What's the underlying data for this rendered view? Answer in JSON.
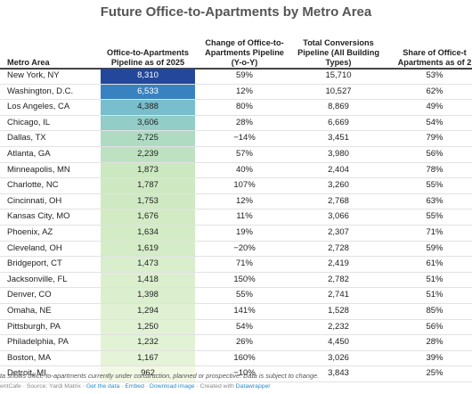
{
  "title": "Future Office-to-Apartments by Metro Area",
  "columns": [
    "Metro Area",
    [
      "Office-to-Apartments",
      "Pipeline as of 2025"
    ],
    [
      "Change of Office-to-",
      "Apartments Pipeline",
      "(Y-o-Y)"
    ],
    [
      "Total Conversions",
      "Pipeline (All Building",
      "Types)"
    ],
    [
      "Share of Office-t",
      "Apartments as of 2"
    ]
  ],
  "chart_data": {
    "type": "table",
    "columns": [
      "Metro Area",
      "Office-to-Apartments Pipeline as of 2025",
      "Change of Office-to-Apartments Pipeline (Y-o-Y)",
      "Total Conversions Pipeline (All Building Types)",
      "Share of Office-t Apartments as of 2"
    ],
    "rows": [
      [
        "New York, NY",
        "8,310",
        "59%",
        "15,710",
        "53%"
      ],
      [
        "Washington, D.C.",
        "6,533",
        "12%",
        "10,527",
        "62%"
      ],
      [
        "Los Angeles, CA",
        "4,388",
        "80%",
        "8,869",
        "49%"
      ],
      [
        "Chicago, IL",
        "3,606",
        "28%",
        "6,669",
        "54%"
      ],
      [
        "Dallas, TX",
        "2,725",
        "−14%",
        "3,451",
        "79%"
      ],
      [
        "Atlanta, GA",
        "2,239",
        "57%",
        "3,980",
        "56%"
      ],
      [
        "Minneapolis, MN",
        "1,873",
        "40%",
        "2,404",
        "78%"
      ],
      [
        "Charlotte, NC",
        "1,787",
        "107%",
        "3,260",
        "55%"
      ],
      [
        "Cincinnati, OH",
        "1,753",
        "12%",
        "2,768",
        "63%"
      ],
      [
        "Kansas City, MO",
        "1,676",
        "11%",
        "3,066",
        "55%"
      ],
      [
        "Phoenix, AZ",
        "1,634",
        "19%",
        "2,307",
        "71%"
      ],
      [
        "Cleveland, OH",
        "1,619",
        "−20%",
        "2,728",
        "59%"
      ],
      [
        "Bridgeport, CT",
        "1,473",
        "71%",
        "2,419",
        "61%"
      ],
      [
        "Jacksonville, FL",
        "1,418",
        "150%",
        "2,782",
        "51%"
      ],
      [
        "Denver, CO",
        "1,398",
        "55%",
        "2,741",
        "51%"
      ],
      [
        "Omaha, NE",
        "1,294",
        "141%",
        "1,528",
        "85%"
      ],
      [
        "Pittsburgh, PA",
        "1,250",
        "54%",
        "2,232",
        "56%"
      ],
      [
        "Philadelphia, PA",
        "1,232",
        "26%",
        "4,450",
        "28%"
      ],
      [
        "Boston, MA",
        "1,167",
        "160%",
        "3,026",
        "39%"
      ],
      [
        "Detroit, MI",
        "962",
        "−10%",
        "3,843",
        "25%"
      ]
    ],
    "pipeline_values": [
      8310,
      6533,
      4388,
      3606,
      2725,
      2239,
      1873,
      1787,
      1753,
      1676,
      1634,
      1619,
      1473,
      1418,
      1398,
      1294,
      1250,
      1232,
      1167,
      962
    ],
    "color_scale": {
      "min": 962,
      "max": 8310,
      "stops": [
        "#f1f8e4",
        "#cde9c0",
        "#a3d6c4",
        "#6fb9cf",
        "#3a86c3",
        "#23479b"
      ]
    }
  },
  "notes": "ta shows office-to-apartments currently under construction, planned or prospective. Data is subject to change.",
  "credits": [
    {
      "text": "entCafe · Source: Yardi Matrix · ",
      "link": false
    },
    {
      "text": "Get the data",
      "link": true
    },
    {
      "text": " · ",
      "link": false
    },
    {
      "text": "Embed",
      "link": true
    },
    {
      "text": " · ",
      "link": false
    },
    {
      "text": "Download image",
      "link": true
    },
    {
      "text": " · Created with ",
      "link": false
    },
    {
      "text": "Datawrapper",
      "link": true
    }
  ]
}
